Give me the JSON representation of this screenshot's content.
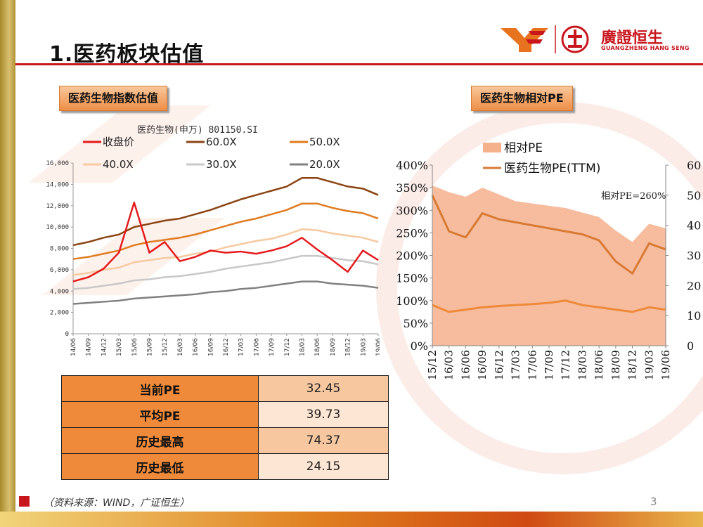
{
  "header": {
    "title": "1.医药板块估值",
    "logo_cn": "廣證恒生",
    "logo_en": "GUANGZHENG HANG SENG"
  },
  "tags": {
    "left": "医药生物指数估值",
    "right": "医药生物相对PE"
  },
  "valuation_table": [
    {
      "label": "当前PE",
      "value": "32.45"
    },
    {
      "label": "平均PE",
      "value": "39.73"
    },
    {
      "label": "历史最高",
      "value": "74.37"
    },
    {
      "label": "历史最低",
      "value": "24.15"
    }
  ],
  "footer": {
    "source": "（资料来源：WIND，广证恒生）",
    "page": "3"
  },
  "colors": {
    "brand_red": "#c8161d",
    "orange": "#ef8a3a"
  },
  "chart_data": [
    {
      "type": "line",
      "title": "医药生物(申万) 801150.SI",
      "categories": [
        "14/06",
        "14/09",
        "14/12",
        "15/03",
        "15/06",
        "15/09",
        "15/12",
        "16/03",
        "16/06",
        "16/09",
        "16/12",
        "17/03",
        "17/06",
        "17/09",
        "17/12",
        "18/03",
        "18/06",
        "18/09",
        "18/12",
        "19/03",
        "19/06"
      ],
      "ylim": [
        0,
        16000
      ],
      "yticks": [
        "0",
        "2,000",
        "4,000",
        "6,000",
        "8,000",
        "10,000",
        "12,000",
        "14,000",
        "16,000"
      ],
      "series": [
        {
          "name": "收盘价",
          "color": "#e41a1c",
          "values": [
            4900,
            5300,
            6100,
            7600,
            12300,
            7600,
            8600,
            6800,
            7200,
            7800,
            7600,
            7700,
            7500,
            7800,
            8200,
            9000,
            7900,
            6900,
            5800,
            7800,
            6900
          ]
        },
        {
          "name": "60.0X",
          "color": "#8b4513",
          "values": [
            8300,
            8600,
            9000,
            9300,
            10000,
            10300,
            10600,
            10800,
            11200,
            11600,
            12100,
            12600,
            13000,
            13400,
            13800,
            14600,
            14600,
            14200,
            13800,
            13600,
            13000
          ]
        },
        {
          "name": "50.0X",
          "color": "#e07b20",
          "values": [
            7000,
            7200,
            7500,
            7800,
            8300,
            8600,
            8800,
            9000,
            9300,
            9700,
            10100,
            10500,
            10800,
            11200,
            11600,
            12200,
            12200,
            11800,
            11500,
            11300,
            10800
          ]
        },
        {
          "name": "40.0X",
          "color": "#f6c9a0",
          "values": [
            5500,
            5700,
            6000,
            6200,
            6700,
            6900,
            7100,
            7200,
            7500,
            7700,
            8100,
            8400,
            8700,
            8900,
            9300,
            9800,
            9700,
            9400,
            9200,
            9000,
            8600
          ]
        },
        {
          "name": "30.0X",
          "color": "#c8c8c8",
          "values": [
            4200,
            4300,
            4500,
            4700,
            5000,
            5100,
            5300,
            5400,
            5600,
            5800,
            6100,
            6300,
            6500,
            6700,
            7000,
            7300,
            7300,
            7100,
            6900,
            6800,
            6500
          ]
        },
        {
          "name": "20.0X",
          "color": "#808080",
          "values": [
            2800,
            2900,
            3000,
            3100,
            3300,
            3400,
            3500,
            3600,
            3700,
            3900,
            4000,
            4200,
            4300,
            4500,
            4700,
            4900,
            4900,
            4700,
            4600,
            4500,
            4300
          ]
        }
      ]
    },
    {
      "type": "area",
      "title": "",
      "categories": [
        "15/12",
        "16/03",
        "16/06",
        "16/09",
        "16/12",
        "17/03",
        "17/06",
        "17/09",
        "17/12",
        "18/03",
        "18/06",
        "18/09",
        "18/12",
        "19/03",
        "19/06"
      ],
      "y_left": {
        "ylim": [
          0,
          400
        ],
        "ticks": [
          "0%",
          "50%",
          "100%",
          "150%",
          "200%",
          "250%",
          "300%",
          "350%",
          "400%"
        ]
      },
      "y_right": {
        "ylim": [
          0,
          60
        ],
        "ticks": [
          "0",
          "10",
          "20",
          "30",
          "40",
          "50",
          "60"
        ]
      },
      "annotation": "相对PE=260%",
      "series": [
        {
          "name": "相对PE",
          "axis": "left",
          "style": "area",
          "color": "#f5b08c",
          "values": [
            355,
            340,
            330,
            350,
            335,
            320,
            315,
            310,
            305,
            295,
            285,
            255,
            230,
            270,
            260
          ]
        },
        {
          "name": "医药生物PE(TTM)",
          "axis": "right",
          "style": "line",
          "color": "#d97a34",
          "values": [
            50,
            38,
            36,
            44,
            42,
            41,
            40,
            39,
            38,
            37,
            35,
            28,
            24,
            34,
            32
          ]
        },
        {
          "name": "",
          "axis": "left",
          "style": "line",
          "color": "#ef8a3a",
          "values": [
            90,
            75,
            80,
            85,
            88,
            90,
            92,
            95,
            100,
            90,
            85,
            80,
            75,
            85,
            80
          ]
        }
      ]
    }
  ]
}
